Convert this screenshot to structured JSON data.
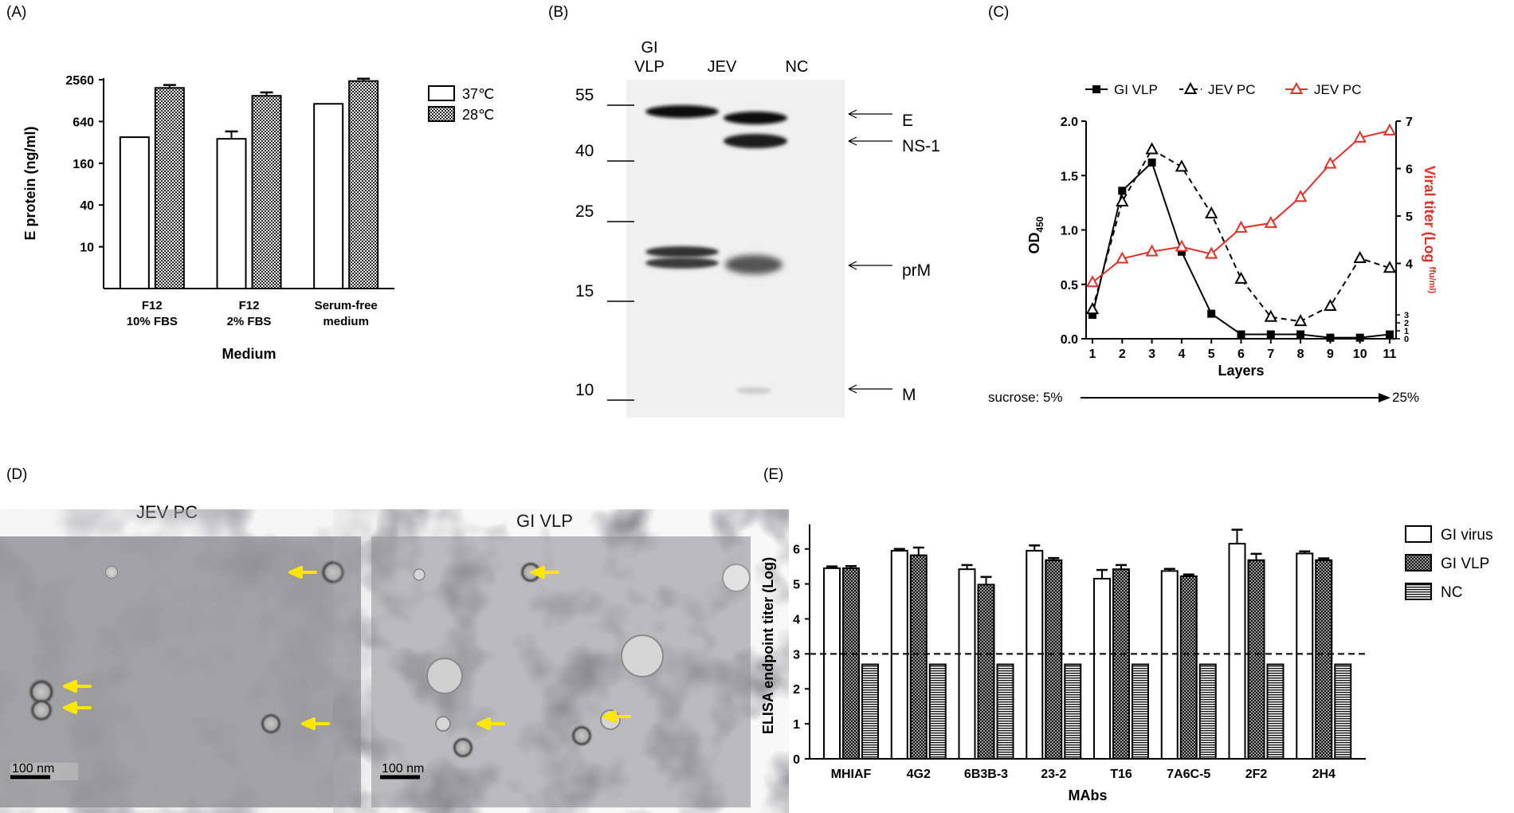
{
  "panel_labels": [
    "(A)",
    "(B)",
    "(C)",
    "(D)",
    "(E)"
  ],
  "colors": {
    "red": "#e0302a",
    "yellow": "#ffe600",
    "black": "#000000"
  },
  "chart_data": [
    {
      "id": "A",
      "type": "bar",
      "ylabel": "E protein (ng/ml)",
      "xlabel": "Medium",
      "y_scale": "log",
      "yticks": [
        10,
        40,
        160,
        640,
        2560
      ],
      "ytick_labels": [
        "10",
        "40",
        "160",
        "640",
        "2560"
      ],
      "categories": [
        "F12\n10% FBS",
        "F12\n2% FBS",
        "Serum-free\nmedium"
      ],
      "series": [
        {
          "name": "37℃",
          "values": [
            380,
            360,
            1150
          ],
          "errors": [
            0,
            100,
            0
          ],
          "fill": "white"
        },
        {
          "name": "28℃",
          "values": [
            1950,
            1500,
            2450
          ],
          "errors": [
            200,
            180,
            200
          ],
          "fill": "checker"
        }
      ],
      "legend_position": "right"
    },
    {
      "id": "B",
      "type": "western-blot",
      "lane_labels": [
        "GI\nVLP",
        "JEV",
        "NC"
      ],
      "marker_labels": [
        "55",
        "40",
        "25",
        "15",
        "10"
      ],
      "marker_kda": [
        55,
        40,
        25,
        15,
        10
      ],
      "band_labels": [
        "E",
        "NS-1",
        "prM",
        "M"
      ]
    },
    {
      "id": "C",
      "type": "line",
      "xlabel": "Layers",
      "ylabel": "OD450",
      "ylabel_main": "OD",
      "ylabel_sub": "450",
      "y2label": "Viral titer  (Log ffu/ml)",
      "y2label_main": "Viral titer  (Log ",
      "y2label_sup": "ffu/ml)",
      "x": [
        1,
        2,
        3,
        4,
        5,
        6,
        7,
        8,
        9,
        10,
        11
      ],
      "ylim": [
        0,
        2.0
      ],
      "yticks": [
        "0.0",
        "0.5",
        "1.0",
        "1.5",
        "2.0"
      ],
      "y2ticks_upper": [
        "4",
        "5",
        "6",
        "7"
      ],
      "y2ticks_lower": [
        "0",
        "1",
        "2",
        "3"
      ],
      "series": [
        {
          "name": "GI VLP",
          "marker": "filled-square",
          "style": "solid",
          "color": "#000000",
          "axis": "left",
          "values": [
            0.22,
            1.36,
            1.62,
            0.8,
            0.23,
            0.04,
            0.04,
            0.04,
            0.01,
            0.01,
            0.04
          ]
        },
        {
          "name": "JEV PC",
          "marker": "open-triangle",
          "style": "dashed",
          "color": "#000000",
          "axis": "left",
          "values": [
            0.27,
            1.26,
            1.74,
            1.58,
            1.15,
            0.55,
            0.2,
            0.16,
            0.3,
            0.74,
            0.65
          ]
        },
        {
          "name": "JEV PC",
          "marker": "open-triangle",
          "style": "solid",
          "color": "#e0302a",
          "axis": "right",
          "values": [
            3.6,
            4.1,
            4.25,
            4.35,
            4.2,
            4.75,
            4.85,
            5.4,
            6.1,
            6.65,
            6.8
          ]
        }
      ],
      "footer_text": "sucrose: 5%",
      "footer_end": "25%"
    },
    {
      "id": "E",
      "type": "bar",
      "xlabel": "MAbs",
      "ylabel": "ELISA endpoint titer (Log)",
      "ylim": [
        0,
        6.7
      ],
      "yticks": [
        "0",
        "1",
        "2",
        "3",
        "4",
        "5",
        "6"
      ],
      "threshold": 3,
      "categories": [
        "MHIAF",
        "4G2",
        "6B3B-3",
        "23-2",
        "T16",
        "7A6C-5",
        "2F2",
        "2H4"
      ],
      "series": [
        {
          "name": "GI virus",
          "fill": "white",
          "values": [
            5.45,
            5.95,
            5.42,
            5.95,
            5.15,
            5.37,
            6.15,
            5.87
          ],
          "errors": [
            0.05,
            0.05,
            0.12,
            0.15,
            0.25,
            0.06,
            0.4,
            0.06
          ]
        },
        {
          "name": "GI VLP",
          "fill": "dots",
          "values": [
            5.45,
            5.82,
            4.98,
            5.68,
            5.42,
            5.22,
            5.68,
            5.68
          ],
          "errors": [
            0.06,
            0.22,
            0.22,
            0.06,
            0.12,
            0.05,
            0.18,
            0.05
          ]
        },
        {
          "name": "NC",
          "fill": "hstripes",
          "values": [
            2.7,
            2.7,
            2.7,
            2.7,
            2.7,
            2.7,
            2.7,
            2.7
          ],
          "errors": [
            0,
            0,
            0,
            0,
            0,
            0,
            0,
            0
          ]
        }
      ],
      "legend_position": "right"
    }
  ],
  "panel_D": {
    "images": [
      {
        "title": "JEV PC",
        "scale_bar": "100 nm"
      },
      {
        "title": "GI VLP",
        "scale_bar": "100 nm"
      }
    ]
  }
}
